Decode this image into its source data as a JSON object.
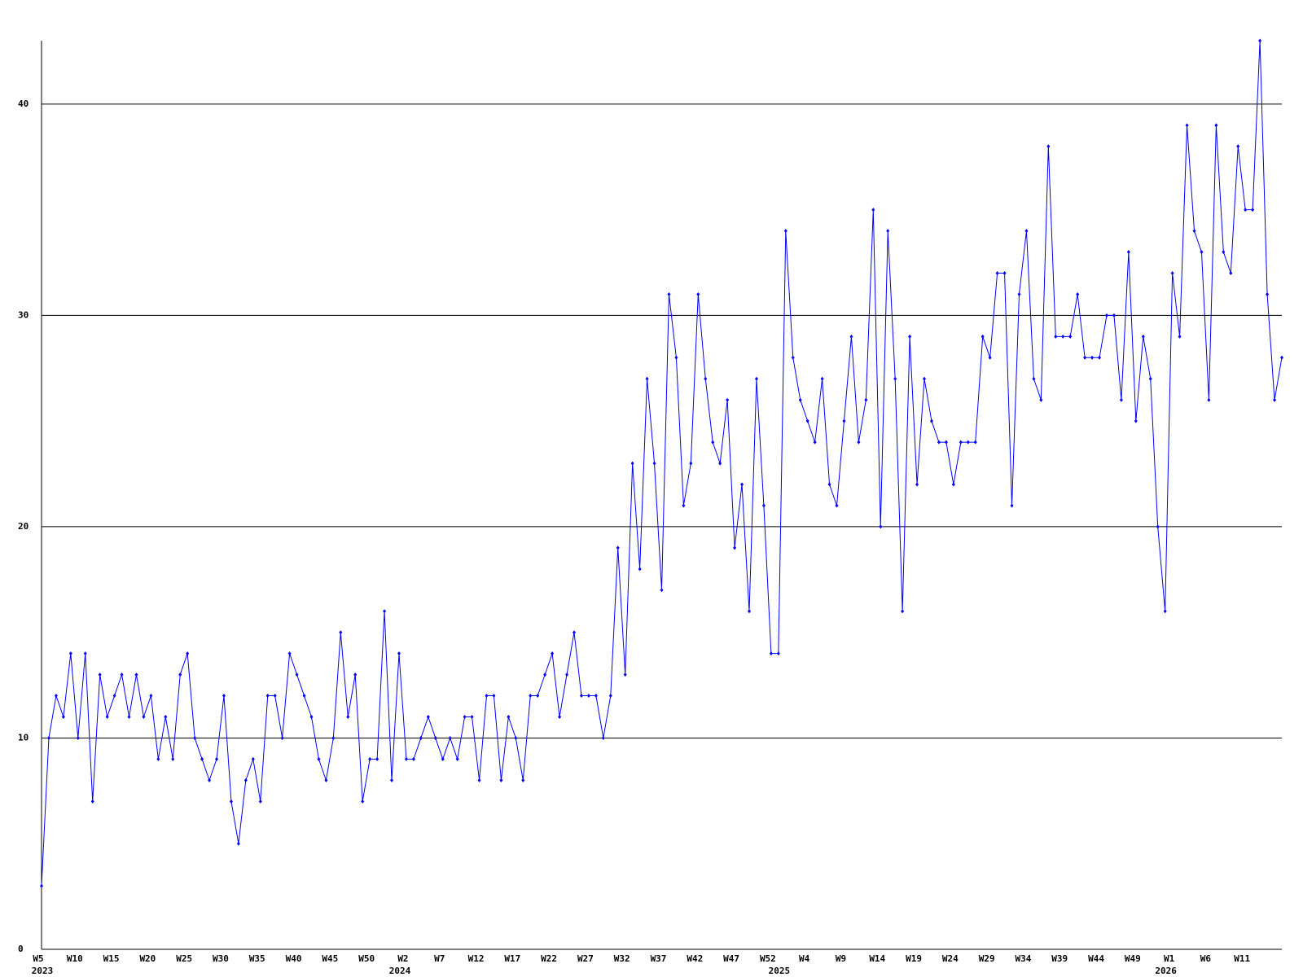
{
  "chart_data": {
    "type": "line",
    "categories": [
      "W5",
      null,
      null,
      null,
      null,
      "W10",
      null,
      null,
      null,
      null,
      "W15",
      null,
      null,
      null,
      null,
      "W20",
      null,
      null,
      null,
      null,
      "W25",
      null,
      null,
      null,
      null,
      "W30",
      null,
      null,
      null,
      null,
      "W35",
      null,
      null,
      null,
      null,
      "W40",
      null,
      null,
      null,
      null,
      "W45",
      null,
      null,
      null,
      null,
      "W50",
      null,
      null,
      null,
      null,
      "W2",
      null,
      null,
      null,
      null,
      "W7",
      null,
      null,
      null,
      null,
      "W12",
      null,
      null,
      null,
      null,
      "W17",
      null,
      null,
      null,
      null,
      "W22",
      null,
      null,
      null,
      null,
      "W27",
      null,
      null,
      null,
      null,
      "W32",
      null,
      null,
      null,
      null,
      "W37",
      null,
      null,
      null,
      null,
      "W42",
      null,
      null,
      null,
      null,
      "W47",
      null,
      null,
      null,
      null,
      "W52",
      null,
      null,
      null,
      null,
      "W4",
      null,
      null,
      null,
      null,
      "W9",
      null,
      null,
      null,
      null,
      "W14",
      null,
      null,
      null,
      null,
      "W19",
      null,
      null,
      null,
      null,
      "W24",
      null,
      null,
      null,
      null,
      "W29",
      null,
      null,
      null,
      null,
      "W34",
      null,
      null,
      null,
      null,
      "W39",
      null,
      null,
      null,
      null,
      "W44",
      null,
      null,
      null,
      null,
      "W49",
      null,
      null,
      null,
      null,
      "W1",
      null,
      null,
      null,
      null,
      "W6",
      null,
      null,
      null,
      null,
      "W11",
      null,
      null,
      null,
      null,
      null
    ],
    "year_labels": [
      "2023",
      null,
      null,
      null,
      null,
      null,
      null,
      null,
      null,
      null,
      null,
      null,
      null,
      null,
      null,
      null,
      null,
      null,
      null,
      null,
      null,
      null,
      null,
      null,
      null,
      null,
      null,
      null,
      null,
      null,
      null,
      null,
      null,
      null,
      null,
      null,
      null,
      null,
      null,
      null,
      null,
      null,
      null,
      null,
      null,
      null,
      null,
      null,
      null,
      "2024",
      null,
      null,
      null,
      null,
      null,
      null,
      null,
      null,
      null,
      null,
      null,
      null,
      null,
      null,
      null,
      null,
      null,
      null,
      null,
      null,
      null,
      null,
      null,
      null,
      null,
      null,
      null,
      null,
      null,
      null,
      null,
      null,
      null,
      null,
      null,
      null,
      null,
      null,
      null,
      null,
      null,
      null,
      null,
      null,
      null,
      null,
      null,
      null,
      null,
      null,
      null,
      "2025",
      null,
      null,
      null,
      null,
      null,
      null,
      null,
      null,
      null,
      null,
      null,
      null,
      null,
      null,
      null,
      null,
      null,
      null,
      null,
      null,
      null,
      null,
      null,
      null,
      null,
      null,
      null,
      null,
      null,
      null,
      null,
      null,
      null,
      null,
      null,
      null,
      null,
      null,
      null,
      null,
      null,
      null,
      null,
      null,
      null,
      null,
      null,
      null,
      null,
      null,
      null,
      null,
      "2026",
      null,
      null,
      null,
      null,
      null,
      null,
      null,
      null,
      null,
      null,
      null,
      null,
      null,
      null,
      null,
      null
    ],
    "series": [
      {
        "color": "#0000ff",
        "values": [
          3,
          10,
          12,
          11,
          14,
          10,
          14,
          7,
          13,
          11,
          12,
          13,
          11,
          13,
          11,
          12,
          9,
          11,
          9,
          13,
          14,
          10,
          9,
          8,
          9,
          12,
          7,
          5,
          8,
          9,
          7,
          12,
          12,
          10,
          14,
          13,
          12,
          11,
          9,
          8,
          10,
          15,
          11,
          13,
          7,
          9,
          9,
          16,
          8,
          14,
          9,
          9,
          10,
          11,
          10,
          9,
          10,
          9,
          11,
          11,
          8,
          12,
          12,
          8,
          11,
          10,
          8,
          12,
          12,
          13,
          14,
          11,
          13,
          15,
          12,
          12,
          12,
          10,
          12,
          19,
          13,
          23,
          18,
          27,
          23,
          17,
          31,
          28,
          21,
          23,
          31,
          27,
          24,
          23,
          26,
          19,
          22,
          16,
          27,
          21,
          14,
          14,
          34,
          28,
          26,
          25,
          24,
          27,
          22,
          21,
          25,
          29,
          24,
          26,
          35,
          20,
          34,
          27,
          16,
          29,
          22,
          27,
          25,
          24,
          24,
          22,
          24,
          24,
          24,
          29,
          28,
          32,
          32,
          21,
          31,
          34,
          27,
          26,
          38,
          29,
          29,
          29,
          31,
          28,
          28,
          28,
          30,
          30,
          26,
          33,
          25,
          29,
          27,
          20,
          16,
          32,
          29,
          39,
          34,
          33,
          26,
          39,
          33,
          32,
          38,
          35,
          35,
          43,
          31,
          26,
          28
        ]
      }
    ],
    "ylim": [
      0,
      43
    ],
    "yticks": [
      0,
      10,
      20,
      30,
      40
    ],
    "grid": true
  }
}
